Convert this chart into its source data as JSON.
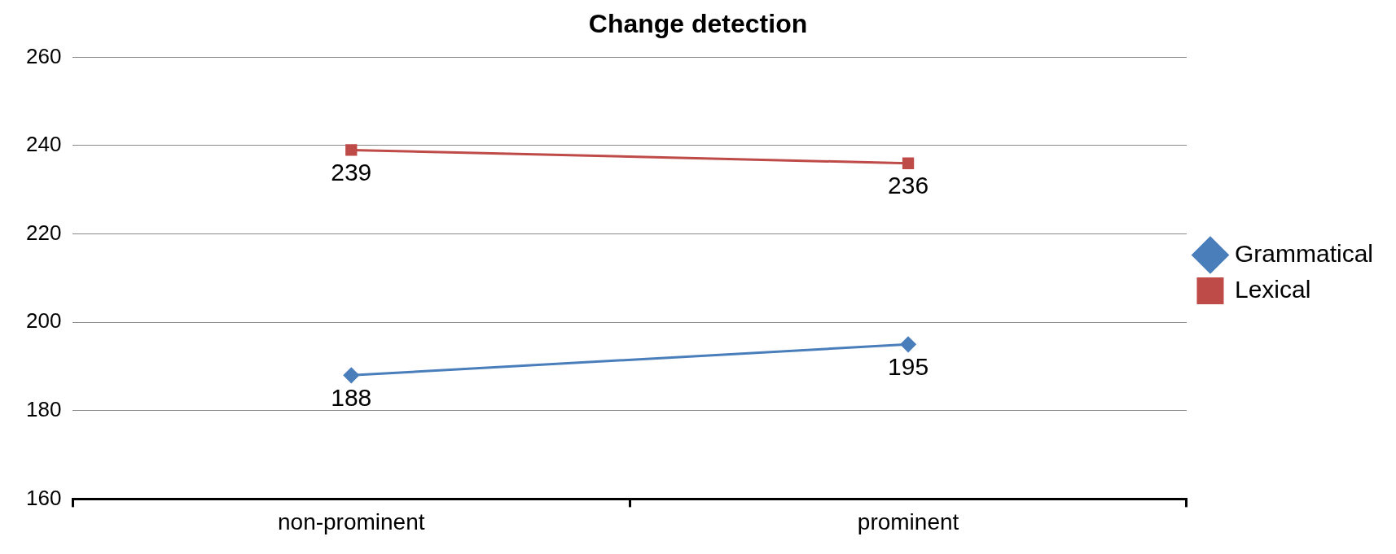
{
  "chart_data": {
    "type": "line",
    "title": "Change detection",
    "categories": [
      "non-prominent",
      "prominent"
    ],
    "series": [
      {
        "name": "Grammatical",
        "color": "#4a7ebb",
        "values": [
          188,
          195
        ],
        "marker": "diamond"
      },
      {
        "name": "Lexical",
        "color": "#be4b48",
        "values": [
          239,
          236
        ],
        "marker": "square"
      }
    ],
    "ylim": [
      160,
      260
    ],
    "yticks": [
      160,
      180,
      200,
      220,
      240,
      260
    ],
    "grid": "y",
    "legend": "right",
    "data_labels": true,
    "line_style": "solid"
  }
}
